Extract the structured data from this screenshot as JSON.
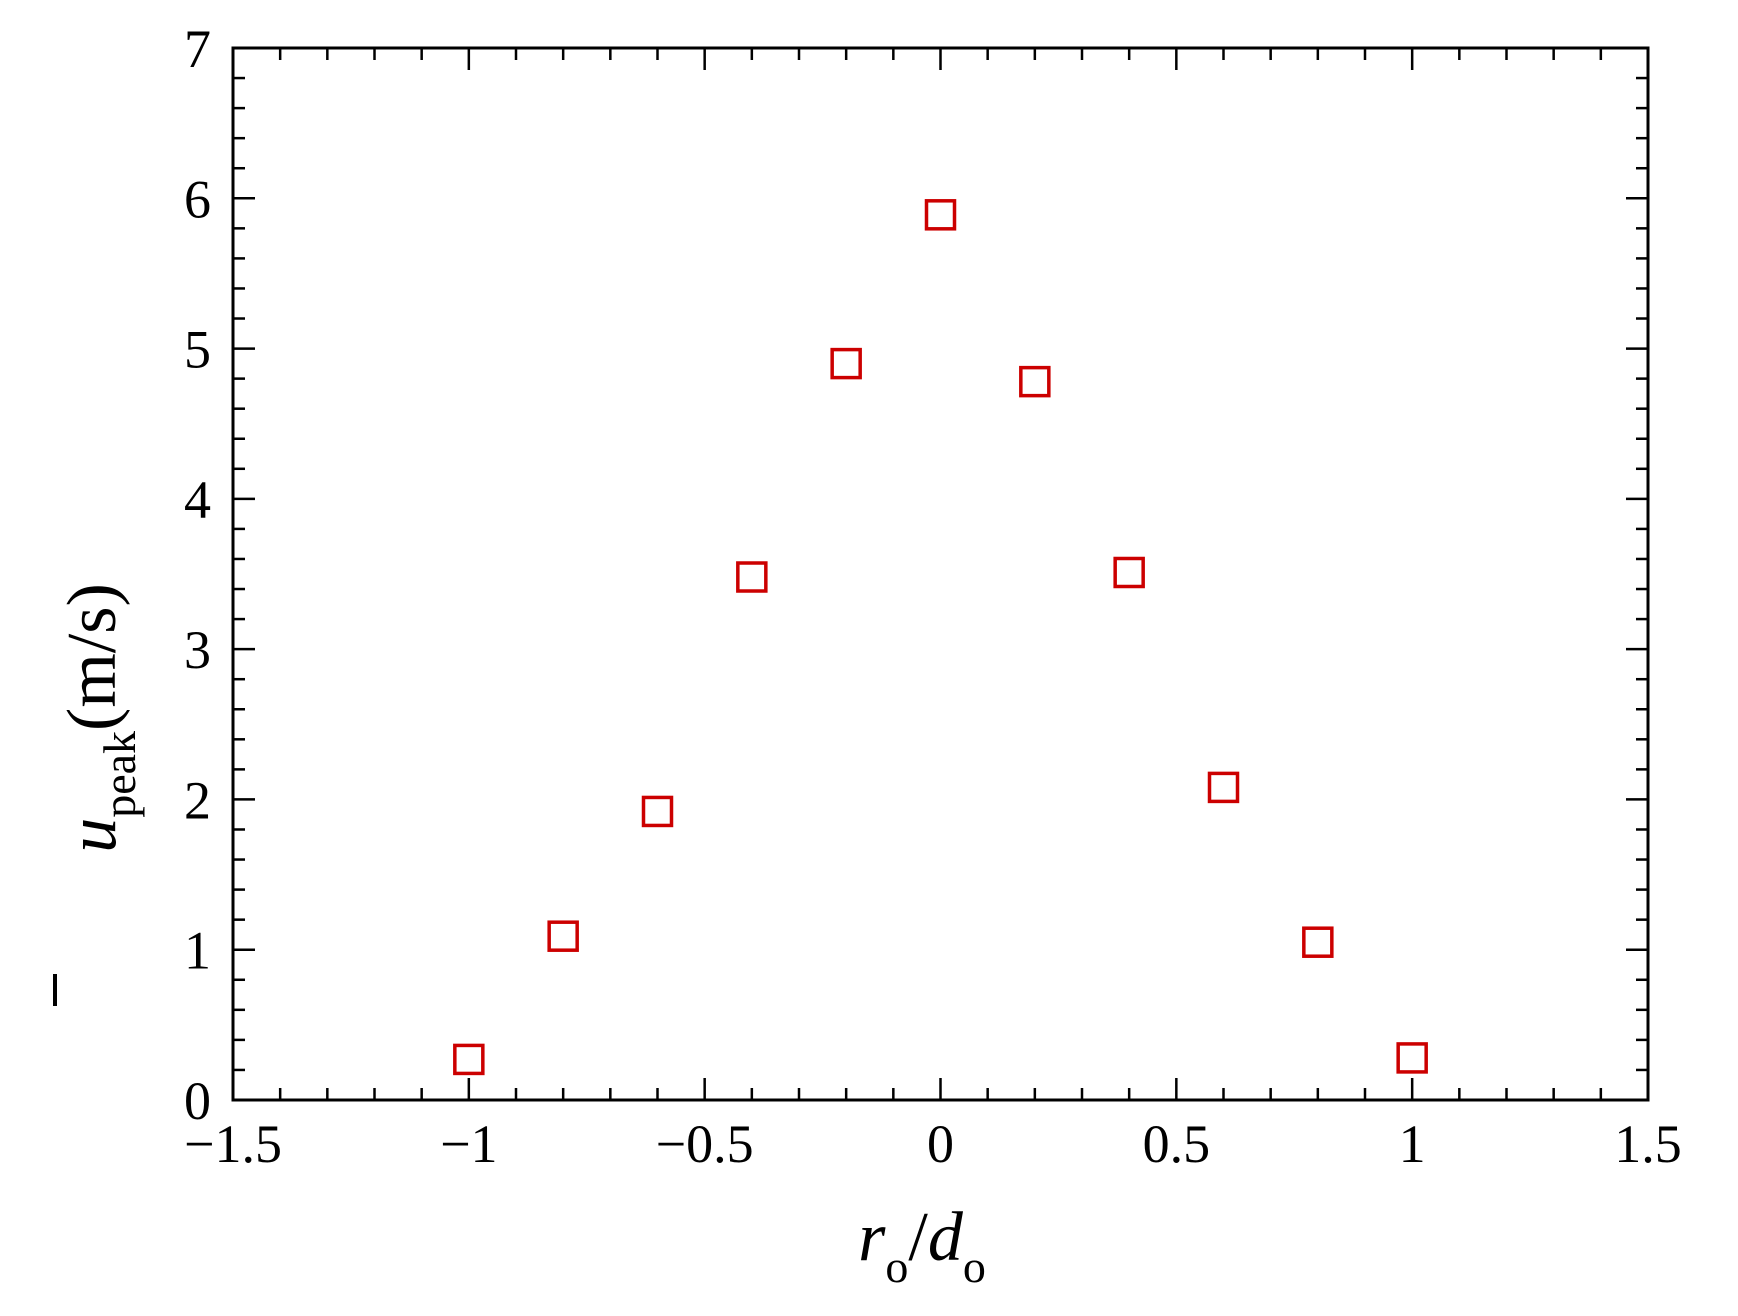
{
  "chart_data": {
    "type": "scatter",
    "title": "",
    "xlabel": {
      "main": "r",
      "sub1": "o",
      "slash": "/",
      "main2": "d",
      "sub2": "o"
    },
    "ylabel": {
      "main": "u",
      "sub": "peak",
      "unit": "(m/s)"
    },
    "xlim": [
      -1.5,
      1.5
    ],
    "ylim": [
      0,
      7
    ],
    "x_ticks": [
      -1.5,
      -1,
      -0.5,
      0,
      0.5,
      1,
      1.5
    ],
    "x_tick_labels": [
      "−1.5",
      "−1",
      "−0.5",
      "0",
      "0.5",
      "1",
      "1.5"
    ],
    "y_ticks": [
      0,
      1,
      2,
      3,
      4,
      5,
      6,
      7
    ],
    "y_tick_labels": [
      "0",
      "1",
      "2",
      "3",
      "4",
      "5",
      "6",
      "7"
    ],
    "x_minor_step": 0.1,
    "y_minor_step": 0.2,
    "grid": false,
    "marker": "open-square",
    "marker_color": "#cc0000",
    "series": [
      {
        "x": [
          -1.0,
          -0.8,
          -0.6,
          -0.4,
          -0.2,
          0.0,
          0.2,
          0.4,
          0.6,
          0.8,
          1.0
        ],
        "y": [
          0.27,
          1.09,
          1.92,
          3.48,
          4.9,
          5.89,
          4.78,
          3.51,
          2.08,
          1.05,
          0.28
        ]
      }
    ]
  }
}
